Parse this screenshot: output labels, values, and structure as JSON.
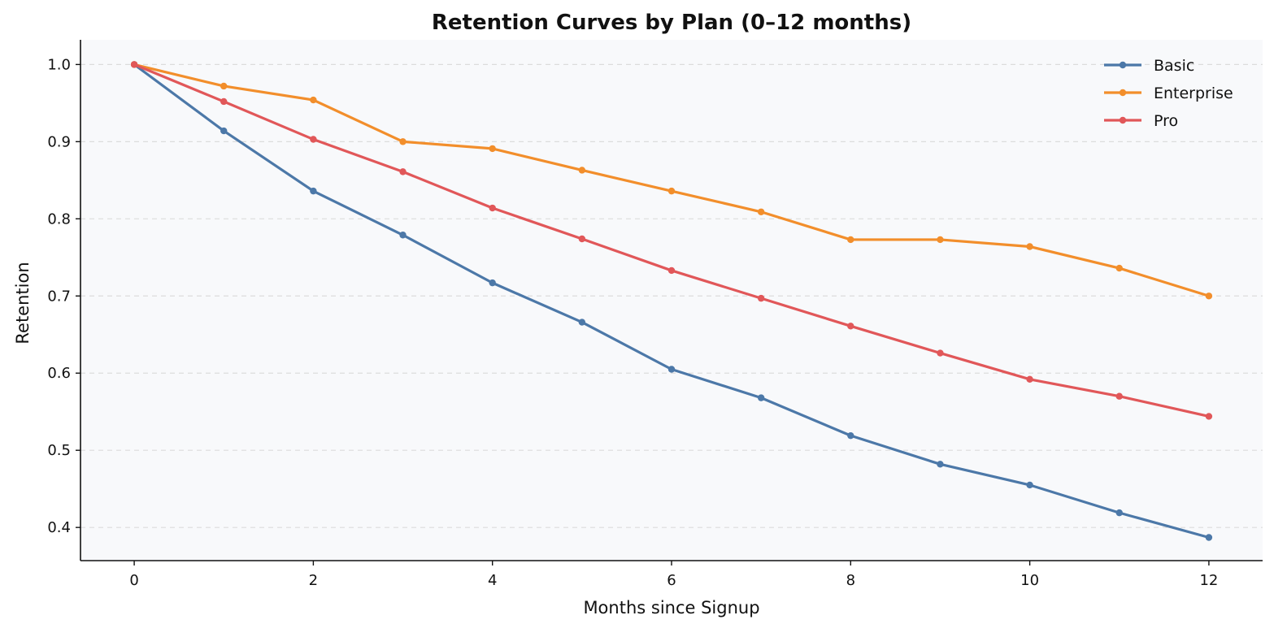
{
  "chart_data": {
    "type": "line",
    "title": "Retention Curves by Plan (0–12 months)",
    "xlabel": "Months since Signup",
    "ylabel": "Retention",
    "x": [
      0,
      1,
      2,
      3,
      4,
      5,
      6,
      7,
      8,
      9,
      10,
      11,
      12
    ],
    "xlim": [
      -0.6,
      12.6
    ],
    "ylim": [
      0.357,
      1.032
    ],
    "x_ticks": [
      0,
      2,
      4,
      6,
      8,
      10,
      12
    ],
    "y_ticks": [
      0.4,
      0.5,
      0.6,
      0.7,
      0.8,
      0.9,
      1.0
    ],
    "y_tick_labels": [
      "0.4",
      "0.5",
      "0.6",
      "0.7",
      "0.8",
      "0.9",
      "1.0"
    ],
    "grid": "horizontal-dashed",
    "legend_position": "top-right",
    "background": "#f8f9fb",
    "series": [
      {
        "name": "Basic",
        "color": "#4c78a8",
        "values": [
          1.0,
          0.914,
          0.836,
          0.779,
          0.717,
          0.666,
          0.605,
          0.568,
          0.519,
          0.482,
          0.455,
          0.419,
          0.387
        ]
      },
      {
        "name": "Enterprise",
        "color": "#f28e2b",
        "values": [
          1.0,
          0.972,
          0.954,
          0.9,
          0.891,
          0.863,
          0.836,
          0.809,
          0.773,
          0.773,
          0.764,
          0.736,
          0.7
        ]
      },
      {
        "name": "Pro",
        "color": "#e15759",
        "values": [
          1.0,
          0.952,
          0.903,
          0.861,
          0.814,
          0.774,
          0.733,
          0.697,
          0.661,
          0.626,
          0.592,
          0.57,
          0.544
        ]
      }
    ]
  }
}
